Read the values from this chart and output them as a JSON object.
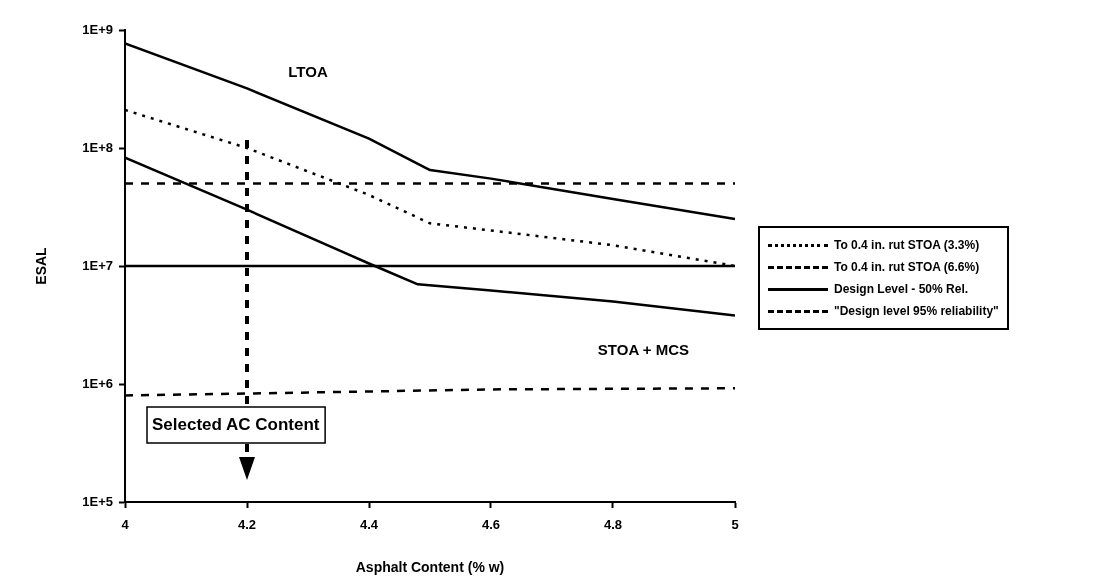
{
  "chart_data": {
    "type": "line",
    "xlabel": "Asphalt Content (% w)",
    "ylabel": "ESAL",
    "xlim": [
      4,
      5
    ],
    "xticks": [
      4,
      4.2,
      4.4,
      4.6,
      4.8,
      5
    ],
    "ylim": [
      100000,
      1000000000
    ],
    "log": true,
    "yticks": [
      {
        "value": 100000,
        "label": "1E+5"
      },
      {
        "value": 1000000,
        "label": "1E+6"
      },
      {
        "value": 10000000,
        "label": "1E+7"
      },
      {
        "value": 100000000,
        "label": "1E+8"
      },
      {
        "value": 1000000000,
        "label": "1E+9"
      }
    ],
    "grid": false,
    "legend": "right",
    "marker": "none",
    "series": [
      {
        "color": "#000000",
        "line_style": "solid",
        "x": [
          4,
          4.2,
          4.4,
          4.5,
          4.6,
          4.8,
          5
        ],
        "values": [
          770000000,
          320000000,
          120000000,
          65000000,
          55000000,
          37000000,
          25000000
        ]
      },
      {
        "name": "To 0.4 in. rut STOA (3.3%)",
        "color": "#000000",
        "line_style": "dotted",
        "x": [
          4,
          4.2,
          4.4,
          4.5,
          4.6,
          4.8,
          5
        ],
        "values": [
          210000000,
          100000000,
          40000000,
          23000000,
          20000000,
          15000000,
          10000000
        ]
      },
      {
        "color": "#000000",
        "line_style": "solid",
        "x": [
          4,
          4.2,
          4.4,
          4.48,
          4.6,
          4.8,
          5
        ],
        "values": [
          83000000,
          30000000,
          10500000,
          7000000,
          6200000,
          5000000,
          3800000
        ]
      },
      {
        "name": "To 0.4 in. rut STOA (6.6%)",
        "color": "#000000",
        "line_style": "dashed",
        "x": [
          4,
          4.2,
          4.6,
          5
        ],
        "values": [
          800000,
          830000,
          900000,
          920000
        ]
      },
      {
        "name": "Design Level - 50% Rel.",
        "color": "#000000",
        "line_style": "solid",
        "x": [
          4,
          5
        ],
        "values": [
          10000000,
          10000000
        ]
      },
      {
        "name": "\"Design level 95% reliability\"",
        "color": "#000000",
        "line_style": "dashed",
        "x": [
          4,
          5
        ],
        "values": [
          50000000,
          50000000
        ]
      }
    ],
    "ref_lines": [
      {
        "axis": "x",
        "value": 4.2,
        "label": "Selected AC Content",
        "line_style": "dashed",
        "color": "#000000"
      }
    ],
    "annotations": [
      "LTOA",
      "STOA + MCS"
    ]
  }
}
